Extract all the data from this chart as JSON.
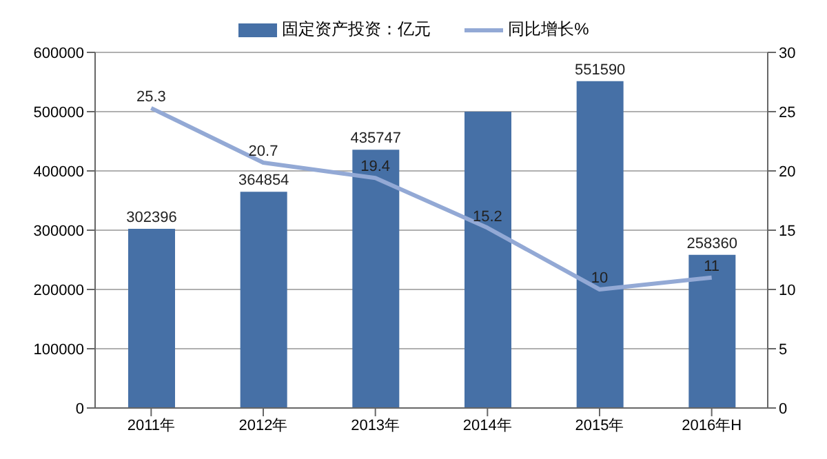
{
  "chart_data": {
    "type": "bar",
    "categories": [
      "2011年",
      "2012年",
      "2013年",
      "2014年",
      "2015年",
      "2016年H"
    ],
    "series": [
      {
        "name": "固定资产投资：亿元",
        "color": "#4670a6",
        "values": [
          302396,
          364854,
          435747,
          500000,
          551590,
          258360
        ],
        "value_labels": [
          "302396",
          "364854",
          "435747",
          null,
          "551590",
          "258360"
        ]
      },
      {
        "name": "同比增长%",
        "type": "line",
        "axis": "y2",
        "color": "#93a9d5",
        "values": [
          25.3,
          20.7,
          19.4,
          15.2,
          10,
          11
        ],
        "value_labels": [
          "25.3",
          "20.7",
          "19.4",
          "15.2",
          "10",
          "11"
        ]
      }
    ],
    "ylim": [
      0,
      600000
    ],
    "yticks": [
      0,
      100000,
      200000,
      300000,
      400000,
      500000,
      600000
    ],
    "y2lim": [
      0,
      30
    ],
    "y2ticks": [
      0,
      5,
      10,
      15,
      20,
      25,
      30
    ],
    "grid": "y",
    "legend": "top",
    "marker": "none"
  }
}
